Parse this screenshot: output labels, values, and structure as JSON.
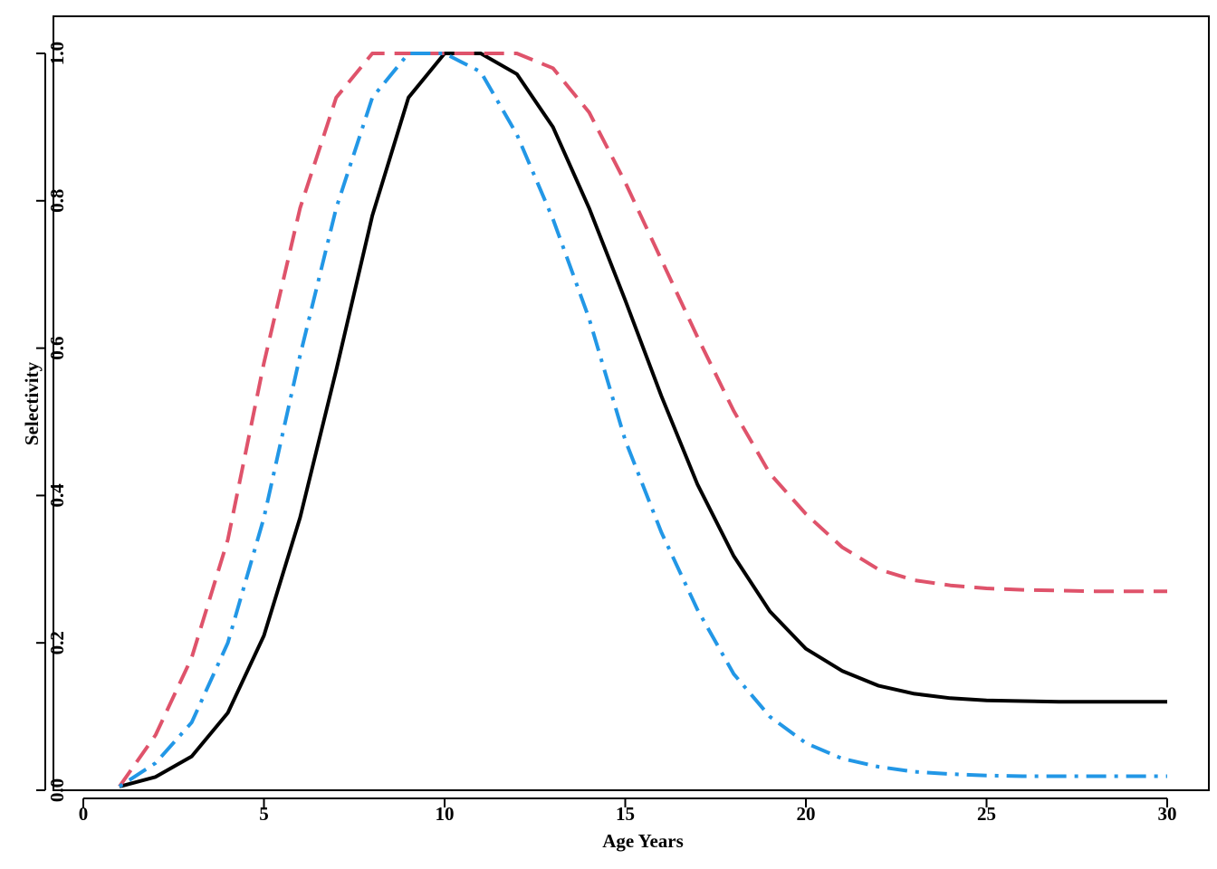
{
  "chart_data": {
    "type": "line",
    "title": "",
    "xlabel": "Age Years",
    "ylabel": "Selectivity",
    "xlim": [
      0,
      30.5
    ],
    "ylim": [
      0,
      1.03
    ],
    "x_ticks": [
      "0",
      "5",
      "10",
      "15",
      "20",
      "25",
      "30"
    ],
    "y_ticks": [
      "0.0",
      "0.2",
      "0.4",
      "0.6",
      "0.8",
      "1.0"
    ],
    "grid": false,
    "legend": "none",
    "x": [
      1,
      2,
      3,
      4,
      5,
      6,
      7,
      8,
      9,
      10,
      11,
      12,
      13,
      14,
      15,
      16,
      17,
      18,
      19,
      20,
      21,
      22,
      23,
      24,
      25,
      26,
      27,
      28,
      29,
      30
    ],
    "series": [
      {
        "color": "#000000",
        "line_style": "solid",
        "values": [
          0.005,
          0.018,
          0.046,
          0.105,
          0.21,
          0.37,
          0.57,
          0.78,
          0.94,
          1.0,
          1.0,
          0.972,
          0.9,
          0.79,
          0.665,
          0.535,
          0.415,
          0.318,
          0.243,
          0.192,
          0.162,
          0.142,
          0.131,
          0.125,
          0.122,
          0.121,
          0.12,
          0.12,
          0.12,
          0.12
        ]
      },
      {
        "color": "#DF536B",
        "line_style": "dashed",
        "values": [
          0.005,
          0.075,
          0.18,
          0.34,
          0.58,
          0.79,
          0.94,
          1.0,
          1.0,
          1.0,
          1.0,
          1.0,
          0.98,
          0.92,
          0.825,
          0.72,
          0.615,
          0.515,
          0.43,
          0.375,
          0.33,
          0.3,
          0.285,
          0.278,
          0.274,
          0.272,
          0.271,
          0.27,
          0.27,
          0.27
        ]
      },
      {
        "color": "#2297E6",
        "line_style": "dotdash",
        "values": [
          0.005,
          0.037,
          0.092,
          0.2,
          0.37,
          0.59,
          0.79,
          0.94,
          1.0,
          1.0,
          0.975,
          0.89,
          0.775,
          0.64,
          0.475,
          0.35,
          0.245,
          0.158,
          0.1,
          0.064,
          0.043,
          0.032,
          0.025,
          0.022,
          0.02,
          0.019,
          0.019,
          0.019,
          0.019,
          0.019
        ]
      }
    ]
  }
}
